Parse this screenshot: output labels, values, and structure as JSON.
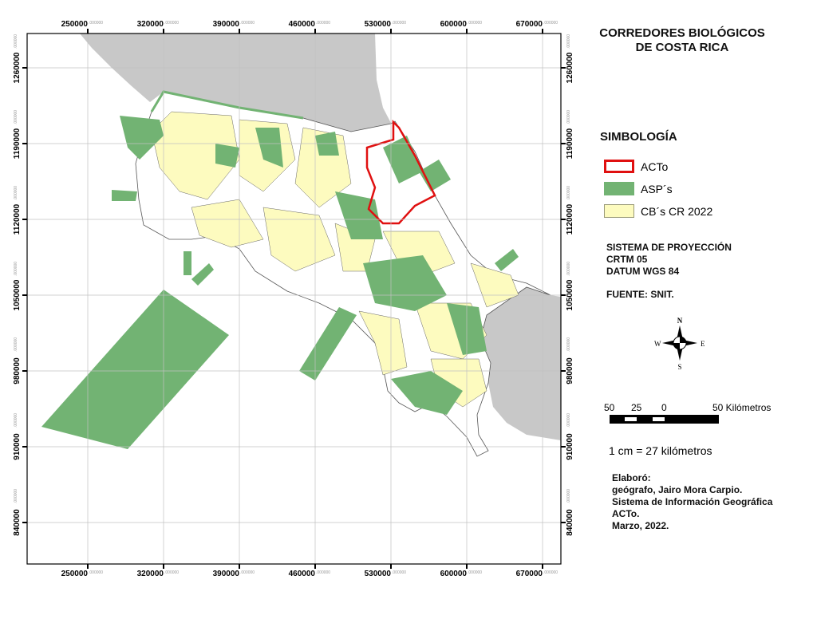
{
  "title": [
    "CORREDORES BIOLÓGICOS",
    "DE COSTA RICA"
  ],
  "legend": {
    "title": "SIMBOLOGÍA",
    "items": [
      {
        "label": "ACTo",
        "fill": "#ffffff",
        "stroke": "#e01010"
      },
      {
        "label": "ASP´s",
        "fill": "#72b373",
        "stroke": "#72b373"
      },
      {
        "label": "CB´s CR 2022",
        "fill": "#fdfbbf",
        "stroke": "#999977"
      }
    ]
  },
  "projection": [
    "SISTEMA DE PROYECCIÓN",
    "CRTM 05",
    "DATUM WGS 84"
  ],
  "source": "FUENTE: SNIT.",
  "north_arrow": {
    "n": "N",
    "s": "S",
    "e": "E",
    "w": "W"
  },
  "scale_bar": {
    "labels": [
      "50",
      "25",
      "0",
      "50 Kilómetros"
    ]
  },
  "scale_ratio": "1 cm = 27 kilómetros",
  "credits": [
    "Elaboró:",
    "geógrafo, Jairo Mora Carpio.",
    "Sistema de Información Geográfica",
    "ACTo.",
    "Marzo, 2022."
  ],
  "axes": {
    "x_ticks": [
      250000,
      320000,
      390000,
      460000,
      530000,
      600000,
      670000
    ],
    "y_ticks": [
      1260000,
      1190000,
      1120000,
      1050000,
      980000,
      910000,
      840000
    ],
    "tick_suffix": ".000000"
  },
  "colors": {
    "land_other": "#c8c8c8",
    "asp": "#72b373",
    "cb": "#fdfbbf",
    "acto": "#e01010",
    "grid": "#c0c0c0"
  }
}
